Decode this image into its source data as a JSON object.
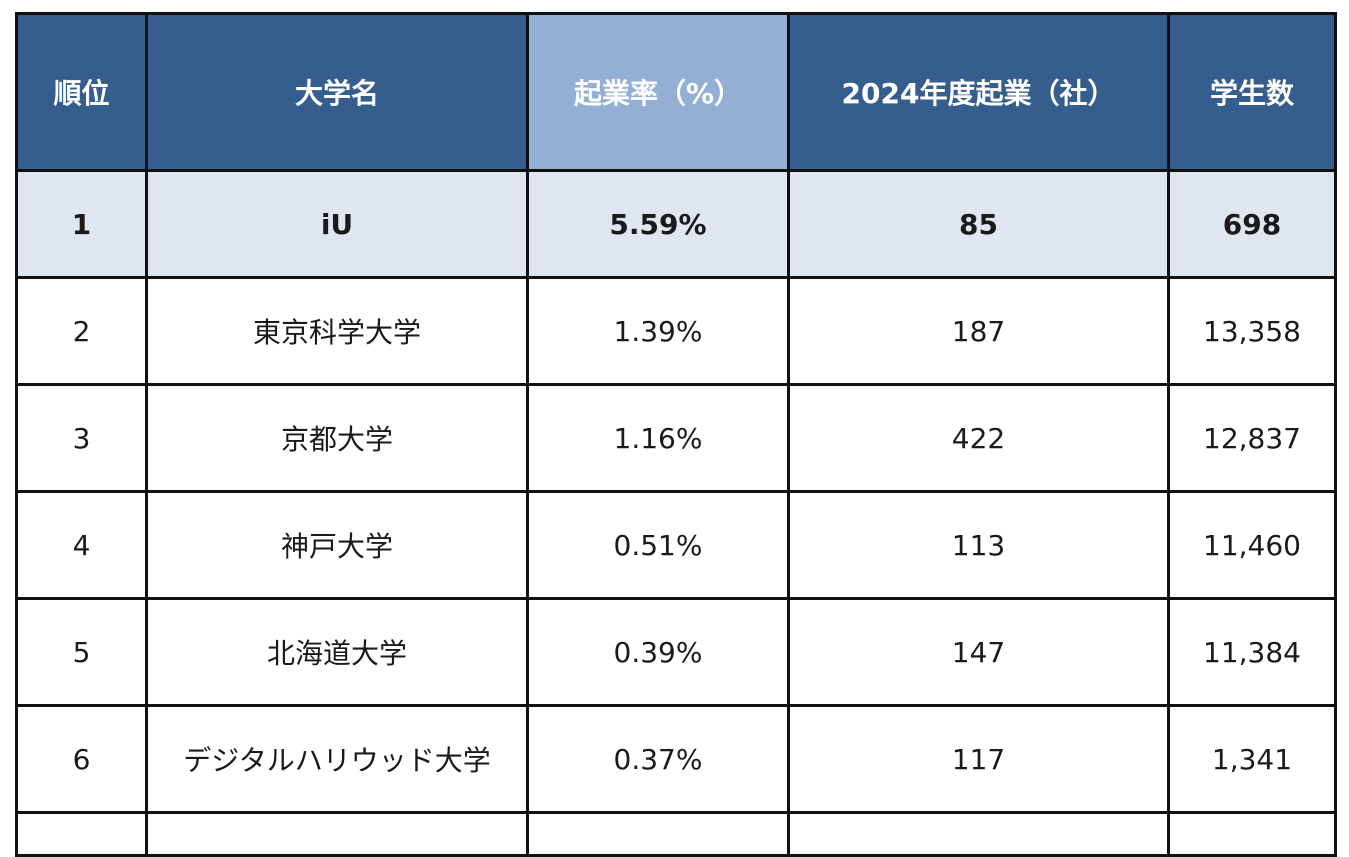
{
  "headers": {
    "rank": "順位",
    "university": "大学名",
    "rate": "起業率（%）",
    "startups": "2024年度起業（社）",
    "students": "学生数"
  },
  "colors": {
    "header_bg": "#355d8e",
    "header_highlight_bg": "#93b0d4",
    "top_row_bg": "#dfe6f0"
  },
  "rows": [
    {
      "rank": "1",
      "university": "iU",
      "rate": "5.59%",
      "startups": "85",
      "students": "698"
    },
    {
      "rank": "2",
      "university": "東京科学大学",
      "rate": "1.39%",
      "startups": "187",
      "students": "13,358"
    },
    {
      "rank": "3",
      "university": "京都大学",
      "rate": "1.16%",
      "startups": "422",
      "students": "12,837"
    },
    {
      "rank": "4",
      "university": "神戸大学",
      "rate": "0.51%",
      "startups": "113",
      "students": "11,460"
    },
    {
      "rank": "5",
      "university": "北海道大学",
      "rate": "0.39%",
      "startups": "147",
      "students": "11,384"
    },
    {
      "rank": "6",
      "university": "デジタルハリウッド大学",
      "rate": "0.37%",
      "startups": "117",
      "students": "1,341"
    }
  ],
  "chart_data": {
    "type": "table",
    "columns": [
      "順位",
      "大学名",
      "起業率（%）",
      "2024年度起業（社）",
      "学生数"
    ],
    "rows": [
      [
        "1",
        "iU",
        "5.59%",
        "85",
        "698"
      ],
      [
        "2",
        "東京科学大学",
        "1.39%",
        "187",
        "13,358"
      ],
      [
        "3",
        "京都大学",
        "1.16%",
        "422",
        "12,837"
      ],
      [
        "4",
        "神戸大学",
        "0.51%",
        "113",
        "11,460"
      ],
      [
        "5",
        "北海道大学",
        "0.39%",
        "147",
        "11,384"
      ],
      [
        "6",
        "デジタルハリウッド大学",
        "0.37%",
        "117",
        "1,341"
      ]
    ]
  }
}
